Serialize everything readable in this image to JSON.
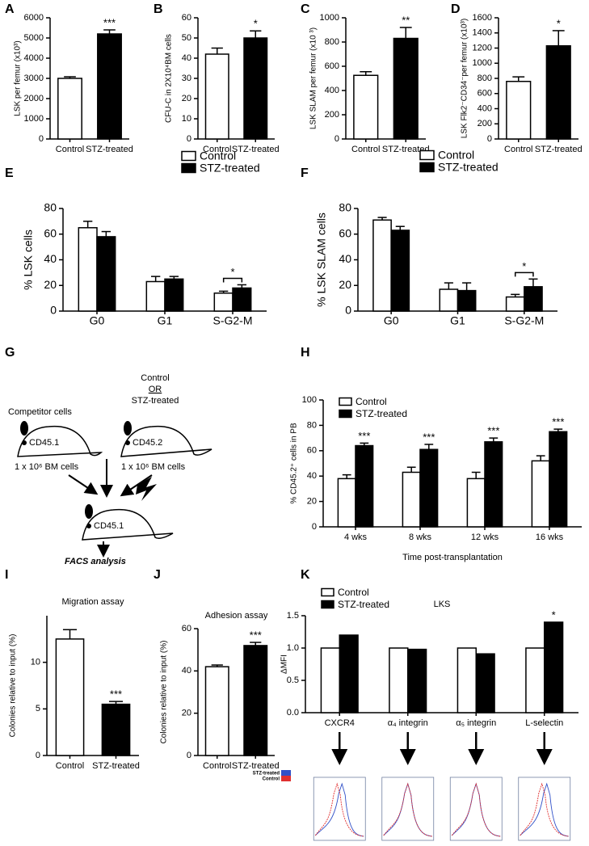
{
  "chart_data": [
    {
      "type": "bar",
      "panel_label": "A",
      "ylabel": "LSK per femur (x10³)",
      "categories": [
        "Control",
        "STZ-treated"
      ],
      "values": [
        3000,
        5200
      ],
      "errors": [
        80,
        200
      ],
      "colors": [
        "#ffffff",
        "#000000"
      ],
      "significance": [
        null,
        "***"
      ],
      "ylim": [
        0,
        6000
      ],
      "yticks": [
        0,
        1000,
        2000,
        3000,
        4000,
        5000,
        6000
      ]
    },
    {
      "type": "bar",
      "panel_label": "B",
      "ylabel": "CFU-C in 2X10⁴BM cells",
      "categories": [
        "Control",
        "STZ-treated"
      ],
      "values": [
        42,
        50
      ],
      "errors": [
        3,
        3.5
      ],
      "colors": [
        "#ffffff",
        "#000000"
      ],
      "significance": [
        null,
        "*"
      ],
      "ylim": [
        0,
        60
      ],
      "yticks": [
        0,
        10,
        20,
        30,
        40,
        50,
        60
      ]
    },
    {
      "type": "bar",
      "panel_label": "C",
      "ylabel": "LSK SLAM per femur (x10 ³)",
      "categories": [
        "Control",
        "STZ-treated"
      ],
      "values": [
        525,
        830
      ],
      "errors": [
        30,
        90
      ],
      "colors": [
        "#ffffff",
        "#000000"
      ],
      "significance": [
        null,
        "**"
      ],
      "ylim": [
        0,
        1000
      ],
      "yticks": [
        0,
        200,
        400,
        600,
        800,
        1000
      ]
    },
    {
      "type": "bar",
      "panel_label": "D",
      "ylabel": "LSK Flk2⁻CD34⁻per femur (x10³)",
      "categories": [
        "Control",
        "STZ-treated"
      ],
      "values": [
        760,
        1230
      ],
      "errors": [
        60,
        200
      ],
      "colors": [
        "#ffffff",
        "#000000"
      ],
      "significance": [
        null,
        "*"
      ],
      "ylim": [
        0,
        1600
      ],
      "yticks": [
        0,
        200,
        400,
        600,
        800,
        1000,
        1200,
        1400,
        1600
      ]
    },
    {
      "type": "bar",
      "panel_label": "E",
      "ylabel": "% LSK cells",
      "categories": [
        "G0",
        "G1",
        "S-G2-M"
      ],
      "series": [
        {
          "name": "Control",
          "color": "#ffffff",
          "values": [
            65,
            23,
            14
          ],
          "errors": [
            5,
            4,
            1.5
          ]
        },
        {
          "name": "STZ-treated",
          "color": "#000000",
          "values": [
            58,
            25,
            18
          ],
          "errors": [
            4,
            2,
            2.5
          ]
        }
      ],
      "significance": [
        null,
        null,
        "*"
      ],
      "significance_bracket": true,
      "ylim": [
        0,
        80
      ],
      "yticks": [
        0,
        20,
        40,
        60,
        80
      ]
    },
    {
      "type": "bar",
      "panel_label": "F",
      "ylabel": "% LSK SLAM cells",
      "categories": [
        "G0",
        "G1",
        "S-G2-M"
      ],
      "series": [
        {
          "name": "Control",
          "color": "#ffffff",
          "values": [
            71,
            17,
            11
          ],
          "errors": [
            2,
            5,
            2
          ]
        },
        {
          "name": "STZ-treated",
          "color": "#000000",
          "values": [
            63,
            16,
            19
          ],
          "errors": [
            3,
            6,
            6
          ]
        }
      ],
      "significance": [
        null,
        null,
        "*"
      ],
      "significance_bracket": true,
      "ylim": [
        0,
        80
      ],
      "yticks": [
        0,
        20,
        40,
        60,
        80
      ]
    },
    {
      "type": "bar",
      "panel_label": "H",
      "ylabel": "% CD45.2⁺ cells in PB",
      "xlabel": "Time post-transplantation",
      "categories": [
        "4 wks",
        "8 wks",
        "12 wks",
        "16 wks"
      ],
      "series": [
        {
          "name": "Control",
          "color": "#ffffff",
          "values": [
            38,
            43,
            38,
            52
          ],
          "errors": [
            3,
            4,
            5,
            4
          ]
        },
        {
          "name": "STZ-treated",
          "color": "#000000",
          "values": [
            64,
            61,
            67,
            75
          ],
          "errors": [
            2,
            4,
            3,
            2
          ]
        }
      ],
      "significance": [
        "***",
        "***",
        "***",
        "***"
      ],
      "ylim": [
        0,
        100
      ],
      "yticks": [
        0,
        20,
        40,
        60,
        80,
        100
      ]
    },
    {
      "type": "bar",
      "panel_label": "I",
      "title": "Migration assay",
      "ylabel": "Colonies relative to input (%)",
      "categories": [
        "Control",
        "STZ-treated"
      ],
      "values": [
        12.5,
        5.5
      ],
      "errors": [
        1,
        0.3
      ],
      "colors": [
        "#ffffff",
        "#000000"
      ],
      "significance": [
        null,
        "***"
      ],
      "ylim": [
        0,
        15
      ],
      "yticks": [
        0,
        5,
        10
      ]
    },
    {
      "type": "bar",
      "panel_label": "J",
      "title": "Adhesion assay",
      "ylabel": "Colonies relative to input (%)",
      "categories": [
        "Control",
        "STZ-treated"
      ],
      "values": [
        42,
        52
      ],
      "errors": [
        0.8,
        1.5
      ],
      "colors": [
        "#ffffff",
        "#000000"
      ],
      "significance": [
        null,
        "***"
      ],
      "ylim": [
        0,
        60
      ],
      "yticks": [
        0,
        20,
        40,
        60
      ]
    },
    {
      "type": "bar",
      "panel_label": "K",
      "title": "LKS",
      "ylabel": "ΔMFI",
      "categories": [
        "CXCR4",
        "α₄ integrin",
        "α₅ integrin",
        "L-selectin"
      ],
      "series": [
        {
          "name": "Control",
          "color": "#ffffff",
          "values": [
            1,
            1,
            1,
            1
          ]
        },
        {
          "name": "STZ-treated",
          "color": "#000000",
          "values": [
            1.2,
            0.98,
            0.91,
            1.4
          ]
        }
      ],
      "significance": [
        null,
        null,
        null,
        "*"
      ],
      "ylim": [
        0,
        1.5
      ],
      "yticks": [
        {
          "value": 0,
          "label": "0.0"
        },
        0.5,
        {
          "value": 1,
          "label": "1.0"
        },
        1.5
      ],
      "histogram_legend": [
        {
          "name": "STZ-treated",
          "color": "#3050c8"
        },
        {
          "name": "Control",
          "color": "#e03030"
        }
      ]
    }
  ],
  "diagram": {
    "panel_label": "G",
    "competitor": "Competitor cells",
    "donor_options": [
      "Control",
      "OR",
      "STZ-treated"
    ],
    "competitor_marker": "CD45.1",
    "donor_marker": "CD45.2",
    "cell_dose": [
      "1 x 10⁶ BM cells",
      "1 x 10⁶ BM cells"
    ],
    "recipient_marker": "CD45.1",
    "readout": "FACS analysis"
  }
}
